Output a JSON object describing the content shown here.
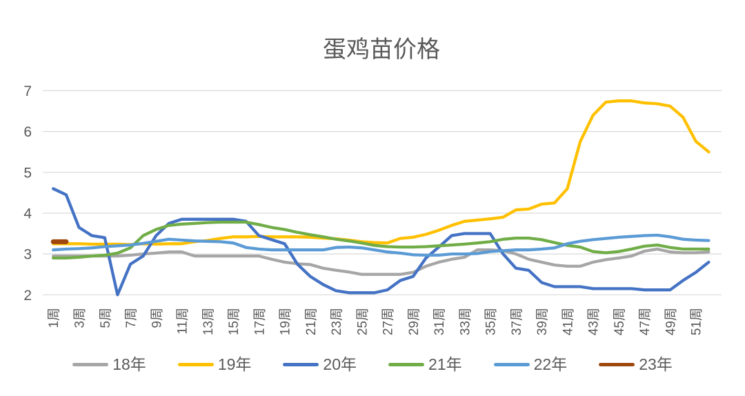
{
  "chart_data": {
    "type": "line",
    "title": "蛋鸡苗价格",
    "xlabel": "",
    "ylabel": "",
    "ylim": [
      2,
      7
    ],
    "y_ticks": [
      "7",
      "6",
      "5",
      "4",
      "3",
      "2"
    ],
    "y_tick_values": [
      7,
      6,
      5,
      4,
      3,
      2
    ],
    "x_tick_labels": [
      "1周",
      "3周",
      "5周",
      "7周",
      "9周",
      "11周",
      "13周",
      "15周",
      "17周",
      "19周",
      "21周",
      "23周",
      "25周",
      "27周",
      "29周",
      "31周",
      "33周",
      "35周",
      "37周",
      "39周",
      "41周",
      "43周",
      "45周",
      "47周",
      "49周",
      "51周"
    ],
    "x_weeks": 52,
    "grid": true,
    "legend_position": "bottom",
    "text_color": "#595959",
    "grid_color": "#d9d9d9",
    "series": [
      {
        "name": "18年",
        "color": "#a6a6a6",
        "values": [
          2.95,
          2.95,
          2.95,
          2.95,
          2.95,
          2.95,
          2.97,
          3.0,
          3.02,
          3.05,
          3.05,
          2.95,
          2.95,
          2.95,
          2.95,
          2.95,
          2.95,
          2.87,
          2.8,
          2.76,
          2.74,
          2.65,
          2.6,
          2.56,
          2.5,
          2.5,
          2.5,
          2.5,
          2.55,
          2.7,
          2.8,
          2.87,
          2.92,
          3.1,
          3.1,
          3.08,
          3.0,
          2.87,
          2.8,
          2.73,
          2.7,
          2.7,
          2.8,
          2.86,
          2.9,
          2.95,
          3.07,
          3.12,
          3.05,
          3.03,
          3.03,
          3.05
        ]
      },
      {
        "name": "19年",
        "color": "#ffc000",
        "values": [
          3.25,
          3.25,
          3.25,
          3.24,
          3.24,
          3.24,
          3.23,
          3.25,
          3.24,
          3.25,
          3.25,
          3.3,
          3.33,
          3.38,
          3.42,
          3.42,
          3.43,
          3.42,
          3.42,
          3.42,
          3.41,
          3.39,
          3.37,
          3.34,
          3.3,
          3.28,
          3.27,
          3.38,
          3.41,
          3.48,
          3.58,
          3.7,
          3.8,
          3.83,
          3.86,
          3.9,
          4.08,
          4.1,
          4.22,
          4.25,
          4.6,
          5.75,
          6.4,
          6.72,
          6.75,
          6.75,
          6.7,
          6.68,
          6.62,
          6.35,
          5.76,
          5.5
        ]
      },
      {
        "name": "20年",
        "color": "#4472c4",
        "values": [
          4.6,
          4.45,
          3.65,
          3.45,
          3.4,
          2.0,
          2.75,
          2.95,
          3.45,
          3.75,
          3.85,
          3.85,
          3.85,
          3.85,
          3.85,
          3.8,
          3.45,
          3.35,
          3.25,
          2.75,
          2.45,
          2.25,
          2.1,
          2.05,
          2.05,
          2.05,
          2.12,
          2.35,
          2.45,
          2.9,
          3.17,
          3.45,
          3.5,
          3.5,
          3.5,
          3.0,
          2.65,
          2.6,
          2.3,
          2.2,
          2.2,
          2.2,
          2.15,
          2.15,
          2.15,
          2.15,
          2.12,
          2.12,
          2.12,
          2.35,
          2.55,
          2.8
        ]
      },
      {
        "name": "21年",
        "color": "#70ad47",
        "values": [
          2.9,
          2.9,
          2.92,
          2.95,
          2.97,
          3.02,
          3.15,
          3.45,
          3.6,
          3.7,
          3.73,
          3.75,
          3.77,
          3.78,
          3.78,
          3.78,
          3.72,
          3.65,
          3.6,
          3.53,
          3.47,
          3.42,
          3.36,
          3.32,
          3.27,
          3.21,
          3.18,
          3.17,
          3.17,
          3.18,
          3.2,
          3.22,
          3.24,
          3.27,
          3.3,
          3.36,
          3.39,
          3.39,
          3.35,
          3.28,
          3.21,
          3.17,
          3.06,
          3.03,
          3.06,
          3.12,
          3.19,
          3.22,
          3.16,
          3.12,
          3.12,
          3.12
        ]
      },
      {
        "name": "22年",
        "color": "#5b9bd5",
        "values": [
          3.1,
          3.12,
          3.13,
          3.15,
          3.18,
          3.2,
          3.22,
          3.26,
          3.31,
          3.36,
          3.34,
          3.32,
          3.31,
          3.3,
          3.27,
          3.16,
          3.12,
          3.1,
          3.1,
          3.1,
          3.1,
          3.1,
          3.16,
          3.17,
          3.15,
          3.1,
          3.05,
          3.02,
          2.98,
          2.97,
          2.97,
          3.0,
          3.0,
          3.01,
          3.06,
          3.08,
          3.1,
          3.1,
          3.12,
          3.15,
          3.25,
          3.31,
          3.35,
          3.38,
          3.41,
          3.43,
          3.45,
          3.46,
          3.42,
          3.36,
          3.34,
          3.33
        ]
      },
      {
        "name": "23年",
        "color": "#9e480e",
        "values": [
          3.3,
          3.3
        ]
      }
    ]
  }
}
